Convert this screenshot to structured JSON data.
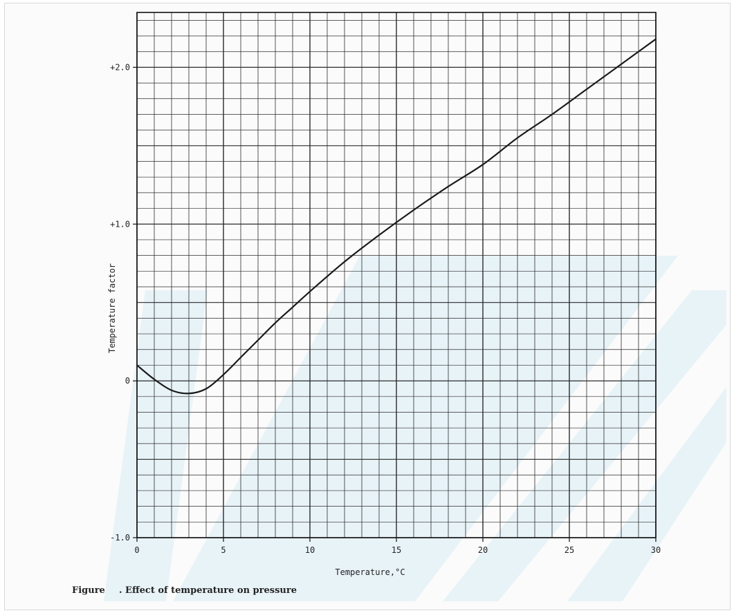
{
  "chart_data": {
    "type": "line",
    "title": "",
    "xlabel": "Temperature,°C",
    "ylabel": "Temperature factor",
    "xlim": [
      0,
      30
    ],
    "ylim": [
      -1.0,
      2.35
    ],
    "x_ticks": [
      0,
      5,
      10,
      15,
      20,
      25,
      30
    ],
    "x_tick_labels": [
      "0",
      "5",
      "10",
      "15",
      "20",
      "25",
      "30"
    ],
    "y_ticks": [
      -1.0,
      0,
      1.0,
      2.0
    ],
    "y_tick_labels": [
      "-1.0",
      "0",
      "+1.0",
      "+2.0"
    ],
    "grid": true,
    "legend": "none",
    "series": [
      {
        "x": [
          0,
          1,
          2,
          3,
          4,
          5,
          6,
          7,
          8,
          9,
          10,
          12,
          14,
          16,
          18,
          20,
          22,
          24,
          26,
          28,
          30
        ],
        "y": [
          0.1,
          0.01,
          -0.06,
          -0.08,
          -0.05,
          0.04,
          0.15,
          0.26,
          0.37,
          0.47,
          0.57,
          0.76,
          0.93,
          1.09,
          1.24,
          1.38,
          1.55,
          1.7,
          1.86,
          2.02,
          2.18
        ]
      }
    ],
    "colors": {
      "line": "#1a1a1a",
      "grid": "#2a2a2a",
      "watermark": "#d9ecf5"
    }
  },
  "caption": {
    "figure_word": "Figure",
    "text": ". Effect of temperature on pressure"
  }
}
